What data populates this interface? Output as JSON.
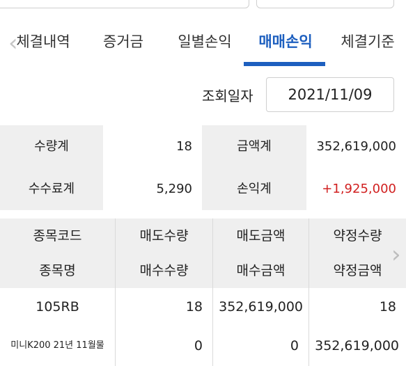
{
  "tabs": {
    "items": [
      "체결내역",
      "증거금",
      "일별손익",
      "매매손익",
      "체결기준"
    ],
    "active_index": 3,
    "accent": "#1d5fbf"
  },
  "query": {
    "label": "조회일자",
    "date": "2021/11/09"
  },
  "summary": {
    "qty_label": "수량계",
    "qty_value": "18",
    "amount_label": "금액계",
    "amount_value": "352,619,000",
    "fee_label": "수수료계",
    "fee_value": "5,290",
    "pnl_label": "손익계",
    "pnl_value": "+1,925,000",
    "pnl_color": "#d11f1f"
  },
  "table": {
    "header_row1": [
      "종목코드",
      "매도수량",
      "매도금액",
      "약정수량"
    ],
    "header_row2": [
      "종목명",
      "매수수량",
      "매수금액",
      "약정금액"
    ],
    "row1": [
      "105RB",
      "18",
      "352,619,000",
      "18"
    ],
    "row2": [
      "미니K200 21년 11월물",
      "0",
      "0",
      "352,619,000"
    ]
  },
  "icons": {
    "left": "chevron-left-icon",
    "right": "chevron-right-icon"
  }
}
